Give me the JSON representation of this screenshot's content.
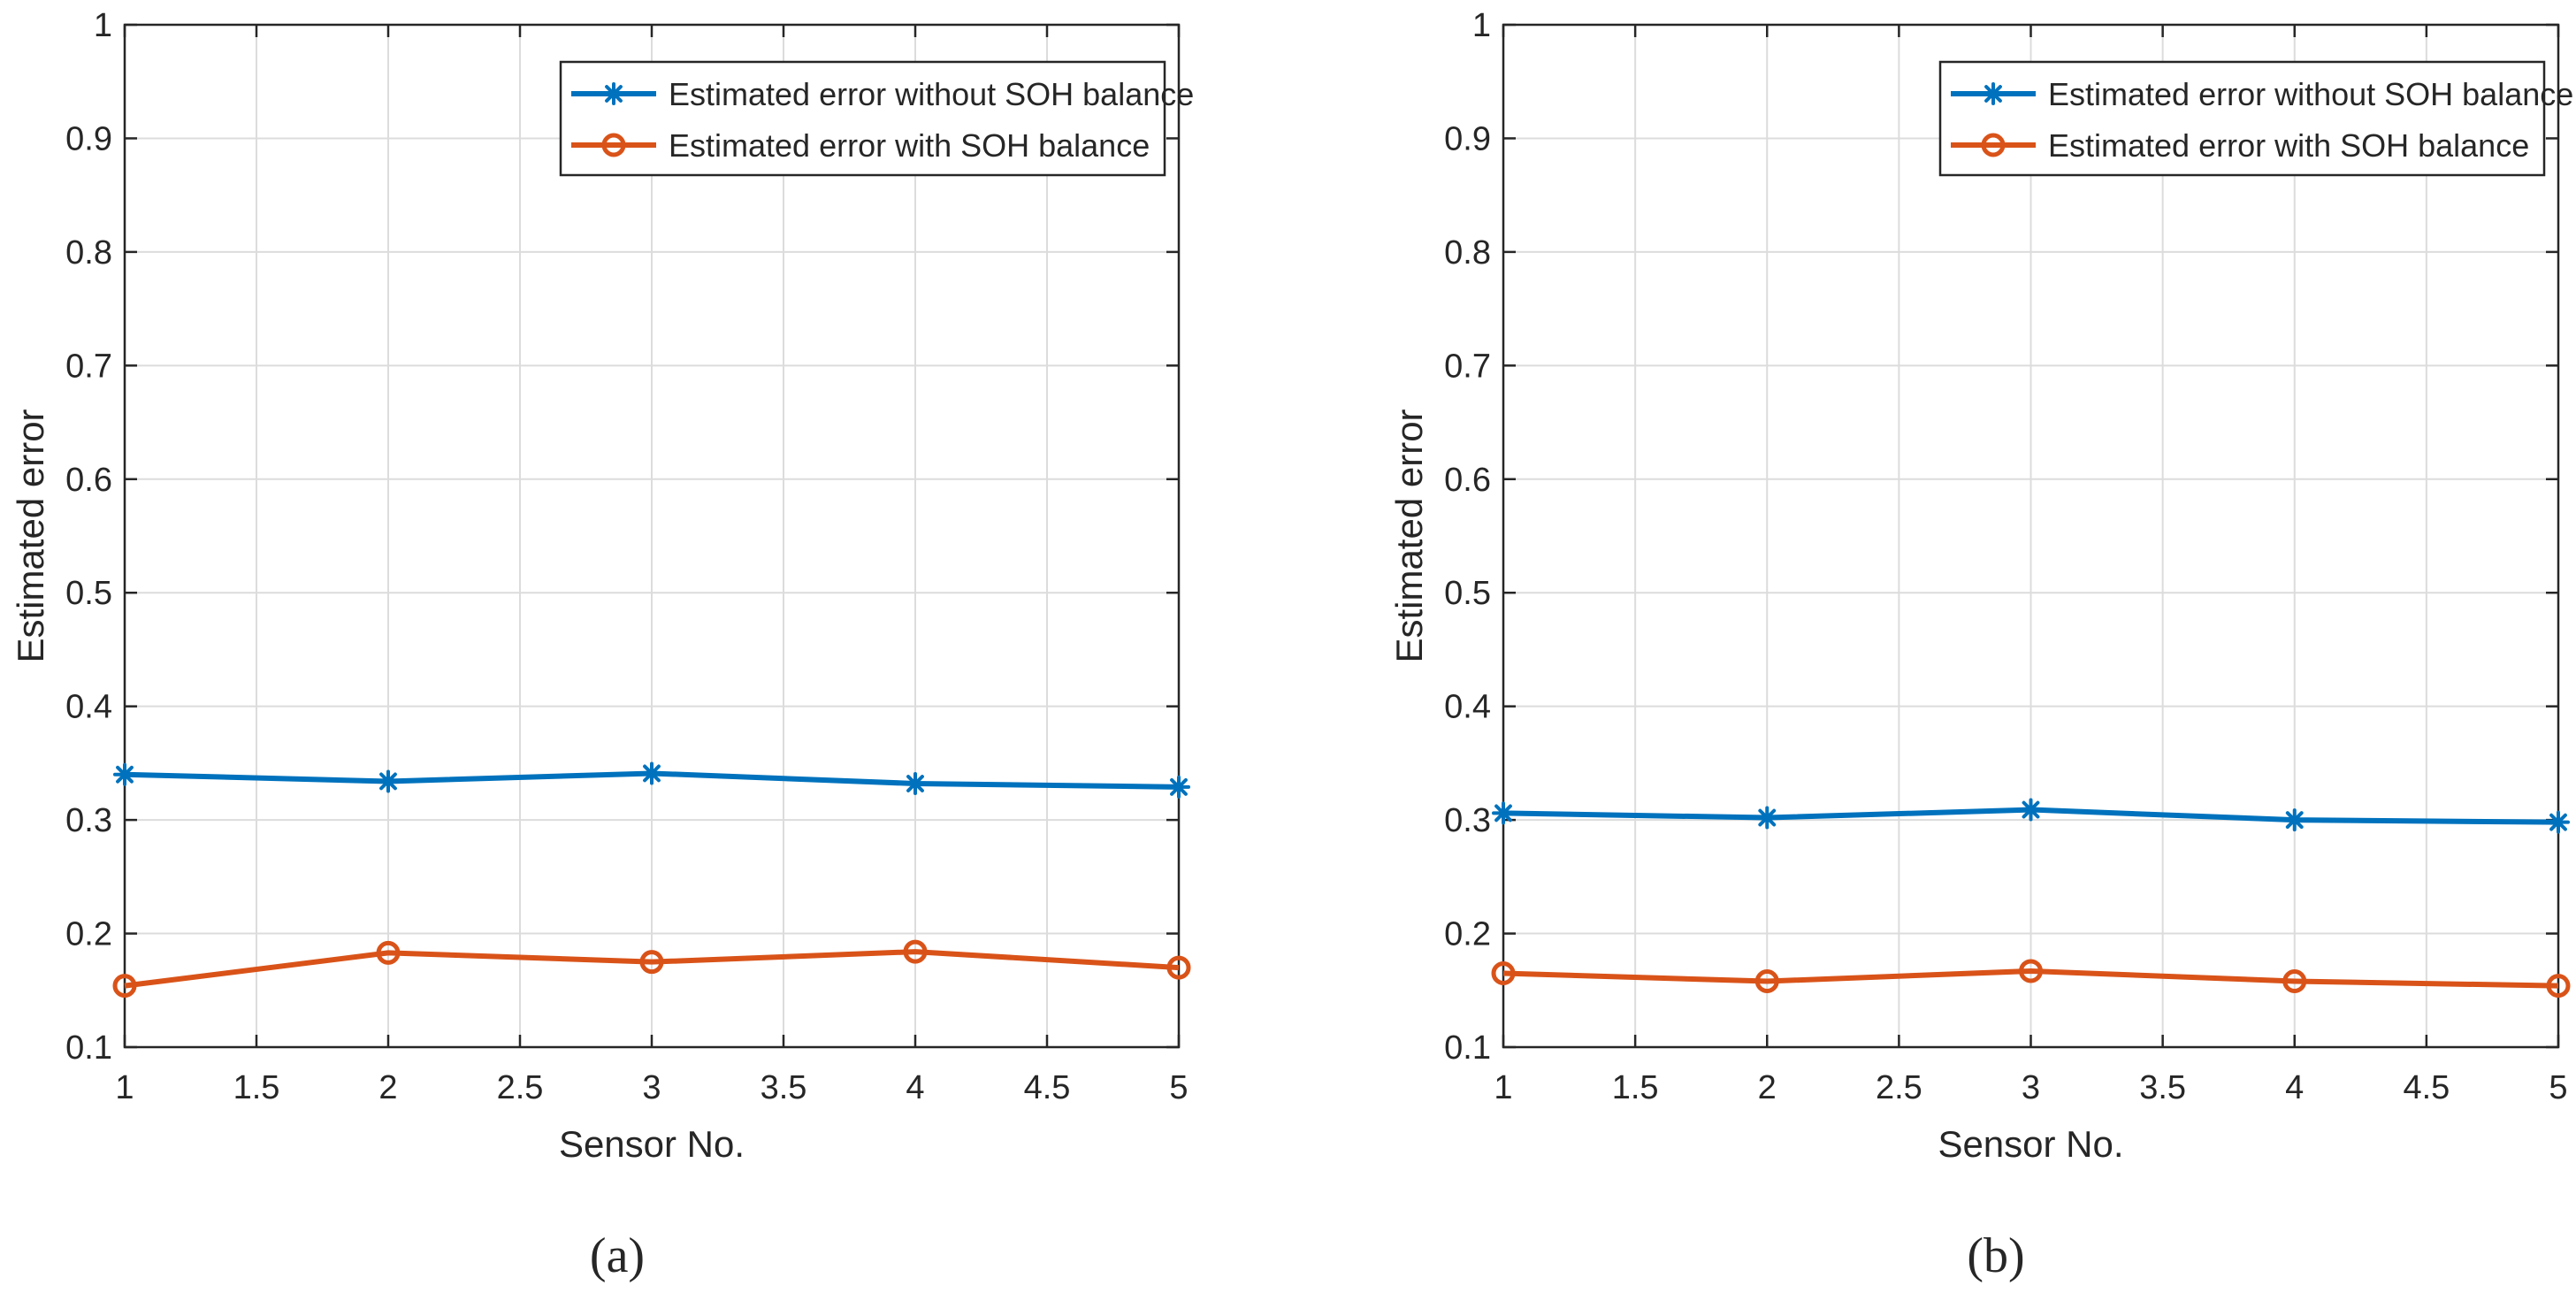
{
  "chart_data": [
    {
      "type": "line",
      "caption": "(a)",
      "title": "",
      "xlabel": "Sensor No.",
      "ylabel": "Estimated error",
      "xlim": [
        1,
        5
      ],
      "ylim": [
        0.1,
        1
      ],
      "xticks": [
        1,
        1.5,
        2,
        2.5,
        3,
        3.5,
        4,
        4.5,
        5
      ],
      "xtick_labels": [
        "1",
        "1.5",
        "2",
        "2.5",
        "3",
        "3.5",
        "4",
        "4.5",
        "5"
      ],
      "yticks": [
        0.1,
        0.2,
        0.3,
        0.4,
        0.5,
        0.6,
        0.7,
        0.8,
        0.9,
        1
      ],
      "ytick_labels": [
        "0.1",
        "0.2",
        "0.3",
        "0.4",
        "0.5",
        "0.6",
        "0.7",
        "0.8",
        "0.9",
        "1"
      ],
      "grid": true,
      "legend_position": "top-right",
      "x": [
        1,
        2,
        3,
        4,
        5
      ],
      "series": [
        {
          "name": "Estimated error without SOH balance",
          "color": "#0072BD",
          "marker": "asterisk",
          "values": [
            0.34,
            0.334,
            0.341,
            0.332,
            0.329
          ]
        },
        {
          "name": "Estimated error with SOH balance",
          "color": "#D95319",
          "marker": "circle",
          "values": [
            0.154,
            0.183,
            0.175,
            0.184,
            0.17
          ]
        }
      ]
    },
    {
      "type": "line",
      "caption": "(b)",
      "title": "",
      "xlabel": "Sensor No.",
      "ylabel": "Estimated error",
      "xlim": [
        1,
        5
      ],
      "ylim": [
        0.1,
        1
      ],
      "xticks": [
        1,
        1.5,
        2,
        2.5,
        3,
        3.5,
        4,
        4.5,
        5
      ],
      "xtick_labels": [
        "1",
        "1.5",
        "2",
        "2.5",
        "3",
        "3.5",
        "4",
        "4.5",
        "5"
      ],
      "yticks": [
        0.1,
        0.2,
        0.3,
        0.4,
        0.5,
        0.6,
        0.7,
        0.8,
        0.9,
        1
      ],
      "ytick_labels": [
        "0.1",
        "0.2",
        "0.3",
        "0.4",
        "0.5",
        "0.6",
        "0.7",
        "0.8",
        "0.9",
        "1"
      ],
      "grid": true,
      "legend_position": "top-right",
      "x": [
        1,
        2,
        3,
        4,
        5
      ],
      "series": [
        {
          "name": "Estimated error without SOH balance",
          "color": "#0072BD",
          "marker": "asterisk",
          "values": [
            0.306,
            0.302,
            0.309,
            0.3,
            0.298
          ]
        },
        {
          "name": "Estimated error with SOH balance",
          "color": "#D95319",
          "marker": "circle",
          "values": [
            0.165,
            0.158,
            0.167,
            0.158,
            0.154
          ]
        }
      ]
    }
  ]
}
